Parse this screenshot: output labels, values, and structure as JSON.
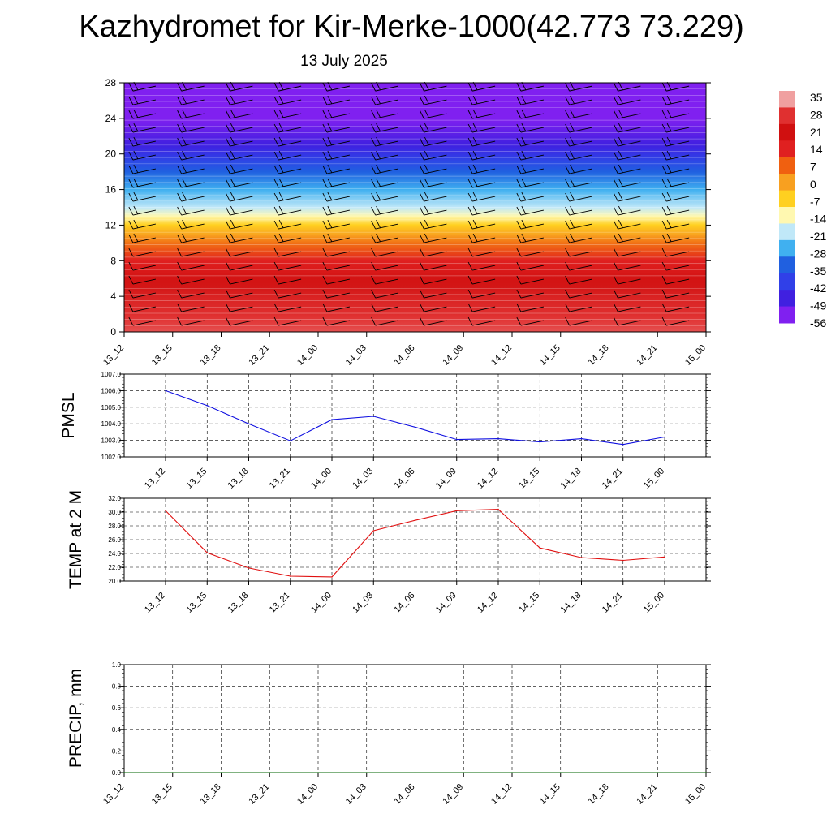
{
  "title": "Kazhydromet for Kir-Merke-1000(42.773 73.229)",
  "subtitle": "13 July 2025",
  "colors": {
    "pmsl_line": "#1010e0",
    "temp_line": "#e01010",
    "precip_line": "#006400"
  },
  "chart_data": [
    {
      "type": "heatmap",
      "title": "",
      "ylabel": "",
      "x_tick_labels": [
        "13_12",
        "13_15",
        "13_18",
        "13_21",
        "14_00",
        "14_03",
        "14_06",
        "14_09",
        "14_12",
        "14_15",
        "14_18",
        "14_21",
        "15_00"
      ],
      "y_ticks": [
        0,
        4,
        8,
        12,
        16,
        20,
        24,
        28
      ],
      "ylim": [
        0,
        28
      ],
      "colorbar": {
        "labels": [
          "35",
          "28",
          "21",
          "14",
          "7",
          "0",
          "-7",
          "-14",
          "-21",
          "-28",
          "-35",
          "-42",
          "-49",
          "-56"
        ],
        "colors": [
          "#f0a0a0",
          "#e03030",
          "#d01010",
          "#e02020",
          "#f06010",
          "#f8a020",
          "#ffd020",
          "#fff8b0",
          "#c0e8f8",
          "#40b0f0",
          "#2060e0",
          "#3040e8",
          "#4020e0",
          "#8020f0"
        ]
      },
      "temperature_profile_by_height": [
        {
          "height": 0,
          "value": 30
        },
        {
          "height": 4,
          "value": 25
        },
        {
          "height": 8,
          "value": 14
        },
        {
          "height": 10,
          "value": 5
        },
        {
          "height": 12,
          "value": -7
        },
        {
          "height": 14,
          "value": -21
        },
        {
          "height": 18,
          "value": -35
        },
        {
          "height": 21,
          "value": -49
        },
        {
          "height": 24,
          "value": -56
        },
        {
          "height": 28,
          "value": -56
        }
      ],
      "overlay": "wind barbs"
    },
    {
      "type": "line",
      "ylabel": "PMSL",
      "x": [
        "13_12",
        "13_15",
        "13_18",
        "13_21",
        "14_00",
        "14_03",
        "14_06",
        "14_09",
        "14_12",
        "14_15",
        "14_18",
        "14_21",
        "15_00"
      ],
      "values": [
        1006.0,
        1005.1,
        1004.0,
        1002.97,
        1004.25,
        1004.45,
        1003.8,
        1003.05,
        1003.1,
        1002.9,
        1003.1,
        1002.75,
        1003.2
      ],
      "ylim": [
        1002.0,
        1007.0
      ],
      "y_ticks": [
        "1002.0",
        "1003.0",
        "1004.0",
        "1005.0",
        "1006.0",
        "1007.0"
      ],
      "grid": true
    },
    {
      "type": "line",
      "ylabel": "TEMP at 2 M",
      "x": [
        "13_12",
        "13_15",
        "13_18",
        "13_21",
        "14_00",
        "14_03",
        "14_06",
        "14_09",
        "14_12",
        "14_15",
        "14_18",
        "14_21",
        "15_00"
      ],
      "values": [
        30.2,
        24.1,
        21.9,
        20.7,
        20.6,
        27.3,
        28.8,
        30.2,
        30.4,
        24.8,
        23.4,
        23.0,
        23.5
      ],
      "ylim": [
        20.0,
        32.0
      ],
      "y_ticks": [
        "20.0",
        "22.0",
        "24.0",
        "26.0",
        "28.0",
        "30.0",
        "32.0"
      ],
      "grid": true
    },
    {
      "type": "line",
      "ylabel": "PRECIP, mm",
      "x": [
        "13_12",
        "13_15",
        "13_18",
        "13_21",
        "14_00",
        "14_03",
        "14_06",
        "14_09",
        "14_12",
        "14_15",
        "14_18",
        "14_21",
        "15_00"
      ],
      "x_tick_labels": [
        "13_12",
        "13_15",
        "13_18",
        "13_21",
        "14_00",
        "14_03",
        "14_06",
        "14_09",
        "14_12",
        "14_15",
        "14_18",
        "14_21",
        "15_00"
      ],
      "values": [
        0,
        0,
        0,
        0,
        0,
        0,
        0,
        0,
        0,
        0,
        0,
        0,
        0
      ],
      "ylim": [
        0.0,
        1.0
      ],
      "y_ticks": [
        "0.0",
        "0.2",
        "0.4",
        "0.6",
        "0.8",
        "1.0"
      ],
      "grid": true
    }
  ]
}
